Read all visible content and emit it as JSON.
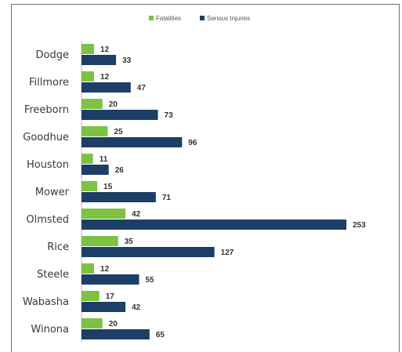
{
  "chart_data": {
    "type": "bar",
    "orientation": "horizontal",
    "categories": [
      "Dodge",
      "Fillmore",
      "Freeborn",
      "Goodhue",
      "Houston",
      "Mower",
      "Olmsted",
      "Rice",
      "Steele",
      "Wabasha",
      "Winona"
    ],
    "series": [
      {
        "name": "Fatalities",
        "color": "#7dc242",
        "values": [
          12,
          12,
          20,
          25,
          11,
          15,
          42,
          35,
          12,
          17,
          20
        ]
      },
      {
        "name": "Serious Injuries",
        "color": "#1b3f66",
        "values": [
          33,
          47,
          73,
          96,
          26,
          71,
          253,
          127,
          55,
          42,
          65
        ]
      }
    ],
    "xlim": [
      0,
      260
    ],
    "grid": false,
    "legend": "top-center"
  }
}
